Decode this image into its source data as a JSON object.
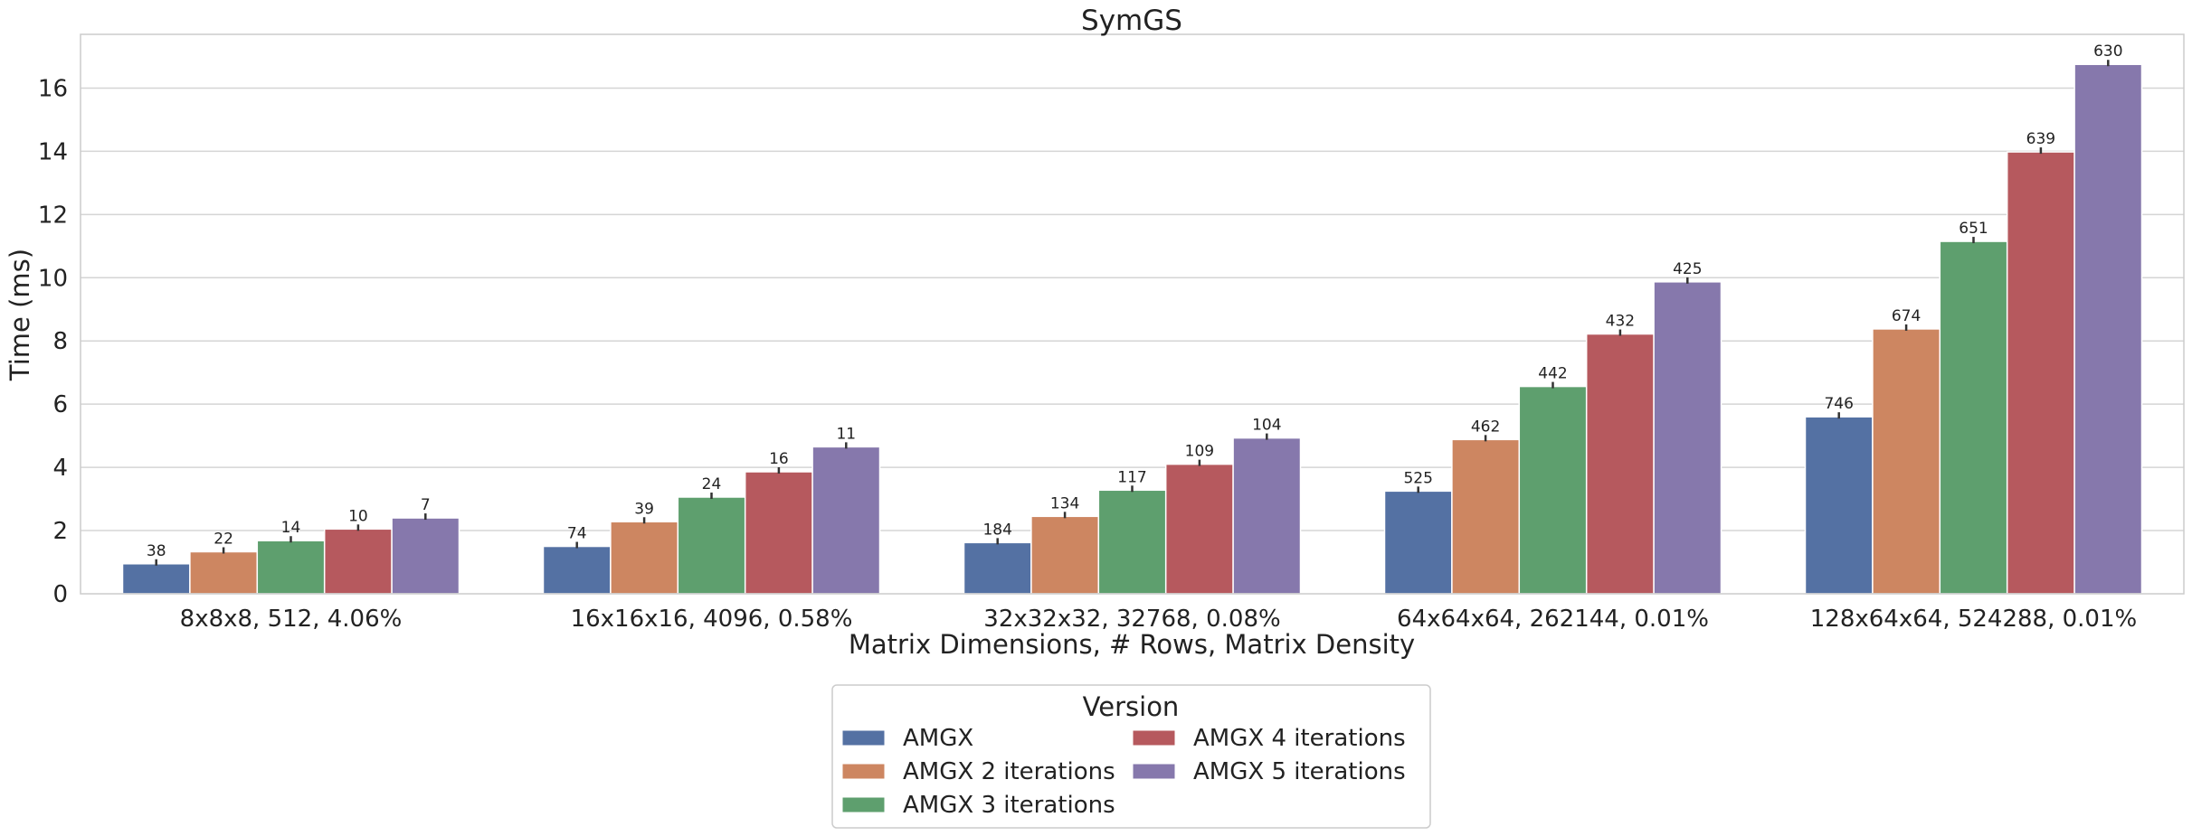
{
  "chart_data": {
    "type": "bar",
    "title": "SymGS",
    "xlabel": "Matrix Dimensions, # Rows, Matrix Density",
    "ylabel": "Time (ms)",
    "ylim": [
      0,
      17.7
    ],
    "yticks": [
      0,
      2,
      4,
      6,
      8,
      10,
      12,
      14,
      16
    ],
    "grid": true,
    "legend_title": "Version",
    "legend_position": "bottom-center",
    "categories": [
      "8x8x8, 512, 4.06%",
      "16x16x16, 4096, 0.58%",
      "32x32x32, 32768, 0.08%",
      "64x64x64, 262144, 0.01%",
      "128x64x64, 524288, 0.01%"
    ],
    "series": [
      {
        "name": "AMGX",
        "color": "#5471a3",
        "values": [
          0.95,
          1.5,
          1.62,
          3.25,
          5.6
        ],
        "labels": [
          "38",
          "74",
          "184",
          "525",
          "746"
        ]
      },
      {
        "name": "AMGX 2 iterations",
        "color": "#cd8661",
        "values": [
          1.33,
          2.28,
          2.45,
          4.88,
          8.38
        ],
        "labels": [
          "22",
          "39",
          "134",
          "462",
          "674"
        ]
      },
      {
        "name": "AMGX 3 iterations",
        "color": "#5e9f6e",
        "values": [
          1.68,
          3.06,
          3.28,
          6.56,
          11.15
        ],
        "labels": [
          "14",
          "24",
          "117",
          "442",
          "651"
        ]
      },
      {
        "name": "AMGX 4 iterations",
        "color": "#b6595e",
        "values": [
          2.05,
          3.86,
          4.1,
          8.22,
          13.98
        ],
        "labels": [
          "10",
          "16",
          "109",
          "432",
          "639"
        ]
      },
      {
        "name": "AMGX 5 iterations",
        "color": "#8678ac",
        "values": [
          2.4,
          4.65,
          4.93,
          9.87,
          16.75
        ],
        "labels": [
          "7",
          "11",
          "104",
          "425",
          "630"
        ]
      }
    ]
  }
}
